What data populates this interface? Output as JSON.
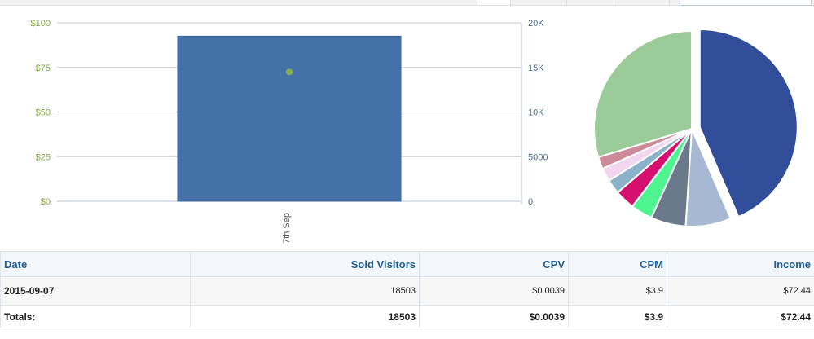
{
  "chart_data": [
    {
      "type": "bar",
      "categories": [
        "7th Sep"
      ],
      "series": [
        {
          "values": [
            18503
          ],
          "axis": "right",
          "color": "#4472a8"
        },
        {
          "values": [
            72.44
          ],
          "axis": "left",
          "marker": "point",
          "color": "#86b050"
        }
      ],
      "left_axis": {
        "ticks": [
          "$0",
          "$25",
          "$50",
          "$75",
          "$100"
        ],
        "ylim": [
          0,
          100
        ],
        "color": "#86a850"
      },
      "right_axis": {
        "ticks": [
          "0",
          "5000",
          "10K",
          "15K",
          "20K"
        ],
        "ylim": [
          0,
          20000
        ],
        "color": "#4a6fa0"
      },
      "grid": true
    },
    {
      "type": "pie",
      "slices": [
        {
          "value": 43.5,
          "color": "#324e9b",
          "exploded": true
        },
        {
          "value": 7.5,
          "color": "#a6b8d2"
        },
        {
          "value": 5.8,
          "color": "#6b7a8a"
        },
        {
          "value": 3.6,
          "color": "#4ef58f"
        },
        {
          "value": 3.3,
          "color": "#d6106e"
        },
        {
          "value": 2.4,
          "color": "#8bb1cb"
        },
        {
          "value": 2.2,
          "color": "#f2d6f0"
        },
        {
          "value": 2.0,
          "color": "#cc8b98"
        },
        {
          "value": 29.7,
          "color": "#9bcb98"
        }
      ]
    }
  ],
  "table": {
    "columns": [
      "Date",
      "Sold Visitors",
      "CPV",
      "CPM",
      "Income"
    ],
    "rows": [
      [
        "2015-09-07",
        "18503",
        "$0.0039",
        "$3.9",
        "$72.44"
      ]
    ],
    "totals": [
      "Totals:",
      "18503",
      "$0.0039",
      "$3.9",
      "$72.44"
    ]
  }
}
